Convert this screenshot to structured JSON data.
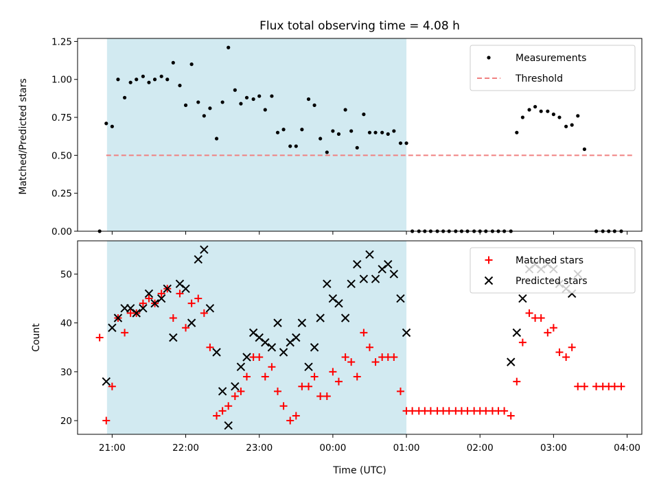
{
  "chart_data": {
    "title": "Flux total observing time = 4.08 h",
    "xlabel": "Time (UTC)",
    "x_ticks": [
      "21:00",
      "22:00",
      "23:00",
      "00:00",
      "01:00",
      "02:00",
      "03:00",
      "04:00"
    ],
    "x_range_hours": [
      20.53,
      28.2
    ],
    "shaded_span_hours": [
      20.93,
      25.0
    ],
    "shaded_color": "#add8e6",
    "panels": [
      {
        "type": "scatter",
        "ylabel": "Matched/Predicted stars",
        "ylim": [
          0,
          1.27
        ],
        "y_ticks": [
          "0.00",
          "0.25",
          "0.50",
          "0.75",
          "1.00",
          "1.25"
        ],
        "legend_position": "upper right",
        "series": [
          {
            "name": "Measurements",
            "marker": "dot",
            "color": "#000000",
            "x": [
              20.83,
              20.92,
              21.0,
              21.08,
              21.17,
              21.25,
              21.33,
              21.42,
              21.5,
              21.58,
              21.67,
              21.75,
              21.83,
              21.92,
              22.0,
              22.08,
              22.17,
              22.25,
              22.33,
              22.42,
              22.5,
              22.58,
              22.67,
              22.75,
              22.83,
              22.92,
              23.0,
              23.08,
              23.17,
              23.25,
              23.33,
              23.42,
              23.5,
              23.58,
              23.67,
              23.75,
              23.83,
              23.92,
              24.0,
              24.08,
              24.17,
              24.25,
              24.33,
              24.42,
              24.5,
              24.58,
              24.67,
              24.75,
              24.83,
              24.92,
              25.0,
              25.08,
              25.17,
              25.25,
              25.33,
              25.42,
              25.5,
              25.58,
              25.67,
              25.75,
              25.83,
              25.92,
              26.0,
              26.08,
              26.17,
              26.25,
              26.33,
              26.42,
              26.5,
              26.58,
              26.67,
              26.75,
              26.83,
              26.92,
              27.0,
              27.08,
              27.17,
              27.25,
              27.33,
              27.42,
              27.58,
              27.67,
              27.75,
              27.83,
              27.92
            ],
            "y": [
              0.0,
              0.71,
              0.69,
              1.0,
              0.88,
              0.98,
              1.0,
              1.02,
              0.98,
              1.0,
              1.02,
              1.0,
              1.11,
              0.96,
              0.83,
              1.1,
              0.85,
              0.76,
              0.81,
              0.61,
              0.85,
              1.21,
              0.93,
              0.84,
              0.88,
              0.87,
              0.89,
              0.8,
              0.89,
              0.65,
              0.67,
              0.56,
              0.56,
              0.67,
              0.87,
              0.83,
              0.61,
              0.52,
              0.66,
              0.64,
              0.8,
              0.66,
              0.55,
              0.77,
              0.65,
              0.65,
              0.65,
              0.64,
              0.66,
              0.58,
              0.58,
              0.0,
              0.0,
              0.0,
              0.0,
              0.0,
              0.0,
              0.0,
              0.0,
              0.0,
              0.0,
              0.0,
              0.0,
              0.0,
              0.0,
              0.0,
              0.0,
              0.0,
              0.65,
              0.75,
              0.8,
              0.82,
              0.79,
              0.79,
              0.77,
              0.75,
              0.69,
              0.7,
              0.76,
              0.54,
              0.0,
              0.0,
              0.0,
              0.0,
              0.0
            ]
          },
          {
            "name": "Threshold",
            "marker": "dashed-line",
            "color": "#f08080",
            "x": [
              20.92,
              28.08
            ],
            "y": [
              0.5,
              0.5
            ]
          }
        ]
      },
      {
        "type": "scatter",
        "ylabel": "Count",
        "ylim": [
          17.2,
          56.8
        ],
        "y_ticks": [
          "20",
          "30",
          "40",
          "50"
        ],
        "legend_position": "upper right",
        "series": [
          {
            "name": "Matched stars",
            "marker": "plus",
            "color": "#ff0000",
            "x": [
              20.83,
              20.92,
              21.0,
              21.08,
              21.17,
              21.25,
              21.33,
              21.42,
              21.5,
              21.58,
              21.67,
              21.75,
              21.83,
              21.92,
              22.0,
              22.08,
              22.17,
              22.25,
              22.33,
              22.42,
              22.5,
              22.58,
              22.67,
              22.75,
              22.83,
              22.92,
              23.0,
              23.08,
              23.17,
              23.25,
              23.33,
              23.42,
              23.5,
              23.58,
              23.67,
              23.75,
              23.83,
              23.92,
              24.0,
              24.08,
              24.17,
              24.25,
              24.33,
              24.42,
              24.5,
              24.58,
              24.67,
              24.75,
              24.83,
              24.92,
              25.0,
              25.08,
              25.17,
              25.25,
              25.33,
              25.42,
              25.5,
              25.58,
              25.67,
              25.75,
              25.83,
              25.92,
              26.0,
              26.08,
              26.17,
              26.25,
              26.33,
              26.42,
              26.5,
              26.58,
              26.67,
              26.75,
              26.83,
              26.92,
              27.0,
              27.08,
              27.17,
              27.25,
              27.33,
              27.42,
              27.58,
              27.67,
              27.75,
              27.83,
              27.92
            ],
            "y": [
              37,
              20,
              27,
              41,
              38,
              42,
              42,
              44,
              45,
              44,
              46,
              47,
              41,
              46,
              39,
              44,
              45,
              42,
              35,
              21,
              22,
              23,
              25,
              26,
              29,
              33,
              33,
              29,
              31,
              26,
              23,
              20,
              21,
              27,
              27,
              29,
              25,
              25,
              30,
              28,
              33,
              32,
              29,
              38,
              35,
              32,
              33,
              33,
              33,
              26,
              22,
              22,
              22,
              22,
              22,
              22,
              22,
              22,
              22,
              22,
              22,
              22,
              22,
              22,
              22,
              22,
              22,
              21,
              28,
              36,
              42,
              41,
              41,
              38,
              39,
              34,
              33,
              35,
              27,
              27,
              27,
              27,
              27,
              27,
              27
            ]
          },
          {
            "name": "Predicted stars",
            "marker": "x",
            "color": "#000000",
            "x": [
              20.92,
              21.0,
              21.08,
              21.17,
              21.25,
              21.33,
              21.42,
              21.5,
              21.58,
              21.67,
              21.75,
              21.83,
              21.92,
              22.0,
              22.08,
              22.17,
              22.25,
              22.33,
              22.42,
              22.5,
              22.58,
              22.67,
              22.75,
              22.83,
              22.92,
              23.0,
              23.08,
              23.17,
              23.25,
              23.33,
              23.42,
              23.5,
              23.58,
              23.67,
              23.75,
              23.83,
              23.92,
              24.0,
              24.08,
              24.17,
              24.25,
              24.33,
              24.42,
              24.5,
              24.58,
              24.67,
              24.75,
              24.83,
              24.92,
              25.0,
              26.42,
              26.5,
              26.58,
              26.67,
              26.75,
              26.83,
              26.92,
              27.0,
              27.08,
              27.17,
              27.25,
              27.33
            ],
            "y": [
              28,
              39,
              41,
              43,
              43,
              42,
              43,
              46,
              44,
              45,
              47,
              37,
              48,
              47,
              40,
              53,
              55,
              43,
              34,
              26,
              19,
              27,
              31,
              33,
              38,
              37,
              36,
              35,
              40,
              34,
              36,
              37,
              40,
              31,
              35,
              41,
              48,
              45,
              44,
              41,
              48,
              52,
              49,
              54,
              49,
              51,
              52,
              50,
              45,
              38,
              32,
              38,
              45,
              51,
              52,
              51,
              52,
              51,
              48,
              47,
              46,
              50
            ]
          }
        ]
      }
    ]
  }
}
